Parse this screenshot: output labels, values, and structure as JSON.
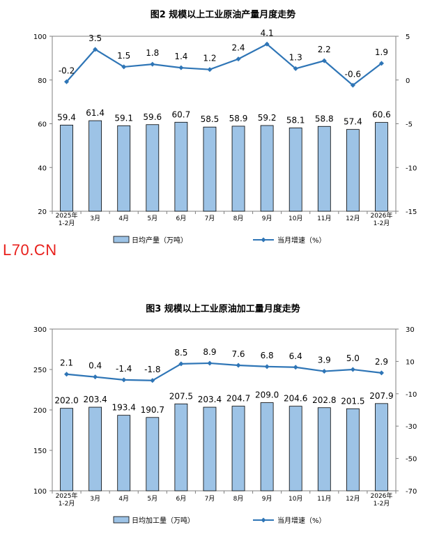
{
  "watermark": "L70.CN",
  "chart_data": [
    {
      "type": "bar",
      "title": "图2  规模以上工业原油产量月度走势",
      "categories": [
        "2025年\n1-2月",
        "3月",
        "4月",
        "5月",
        "6月",
        "7月",
        "8月",
        "9月",
        "10月",
        "11月",
        "12月",
        "2026年\n1-2月"
      ],
      "series": [
        {
          "name": "日均产量（万吨）",
          "kind": "bar",
          "axis": "left",
          "color": "#9dc3e6",
          "values": [
            59.4,
            61.4,
            59.1,
            59.6,
            60.7,
            58.5,
            58.9,
            59.2,
            58.1,
            58.8,
            57.4,
            60.6
          ],
          "labels": [
            "59.4",
            "61.4",
            "59.1",
            "59.6",
            "60.7",
            "58.5",
            "58.9",
            "59.2",
            "58.1",
            "58.8",
            "57.4",
            "60.6"
          ]
        },
        {
          "name": "当月增速（%）",
          "kind": "line",
          "axis": "right",
          "color": "#2e75b6",
          "values": [
            -0.2,
            3.5,
            1.5,
            1.8,
            1.4,
            1.2,
            2.4,
            4.1,
            1.3,
            2.2,
            -0.6,
            1.9
          ],
          "labels": [
            "-0.2",
            "3.5",
            "1.5",
            "1.8",
            "1.4",
            "1.2",
            "2.4",
            "4.1",
            "1.3",
            "2.2",
            "-0.6",
            "1.9"
          ]
        }
      ],
      "y_left": {
        "min": 20,
        "max": 100,
        "ticks": [
          "20",
          "40",
          "60",
          "80",
          "100"
        ]
      },
      "y_right": {
        "min": -15,
        "max": 5,
        "ticks": [
          "-15",
          "-10",
          "-5",
          "0",
          "5"
        ]
      },
      "grid": false,
      "legend": "bottom"
    },
    {
      "type": "bar",
      "title": "图3  规模以上工业原油加工量月度走势",
      "categories": [
        "2025年\n1-2月",
        "3月",
        "4月",
        "5月",
        "6月",
        "7月",
        "8月",
        "9月",
        "10月",
        "11月",
        "12月",
        "2026年\n1-2月"
      ],
      "series": [
        {
          "name": "日均加工量（万吨）",
          "kind": "bar",
          "axis": "left",
          "color": "#9dc3e6",
          "values": [
            202.0,
            203.4,
            193.4,
            190.7,
            207.5,
            203.4,
            204.7,
            209.0,
            204.6,
            202.8,
            201.5,
            207.9
          ],
          "labels": [
            "202.0",
            "203.4",
            "193.4",
            "190.7",
            "207.5",
            "203.4",
            "204.7",
            "209.0",
            "204.6",
            "202.8",
            "201.5",
            "207.9"
          ]
        },
        {
          "name": "当月增速（%）",
          "kind": "line",
          "axis": "right",
          "color": "#2e75b6",
          "values": [
            2.1,
            0.4,
            -1.4,
            -1.8,
            8.5,
            8.9,
            7.6,
            6.8,
            6.4,
            3.9,
            5.0,
            2.9
          ],
          "labels": [
            "2.1",
            "0.4",
            "-1.4",
            "-1.8",
            "8.5",
            "8.9",
            "7.6",
            "6.8",
            "6.4",
            "3.9",
            "5.0",
            "2.9"
          ]
        }
      ],
      "y_left": {
        "min": 100,
        "max": 300,
        "ticks": [
          "100",
          "150",
          "200",
          "250",
          "300"
        ]
      },
      "y_right": {
        "min": -70,
        "max": 30,
        "ticks": [
          "-70",
          "-50",
          "-30",
          "-10",
          "10",
          "30"
        ]
      },
      "grid": false,
      "legend": "bottom"
    }
  ]
}
